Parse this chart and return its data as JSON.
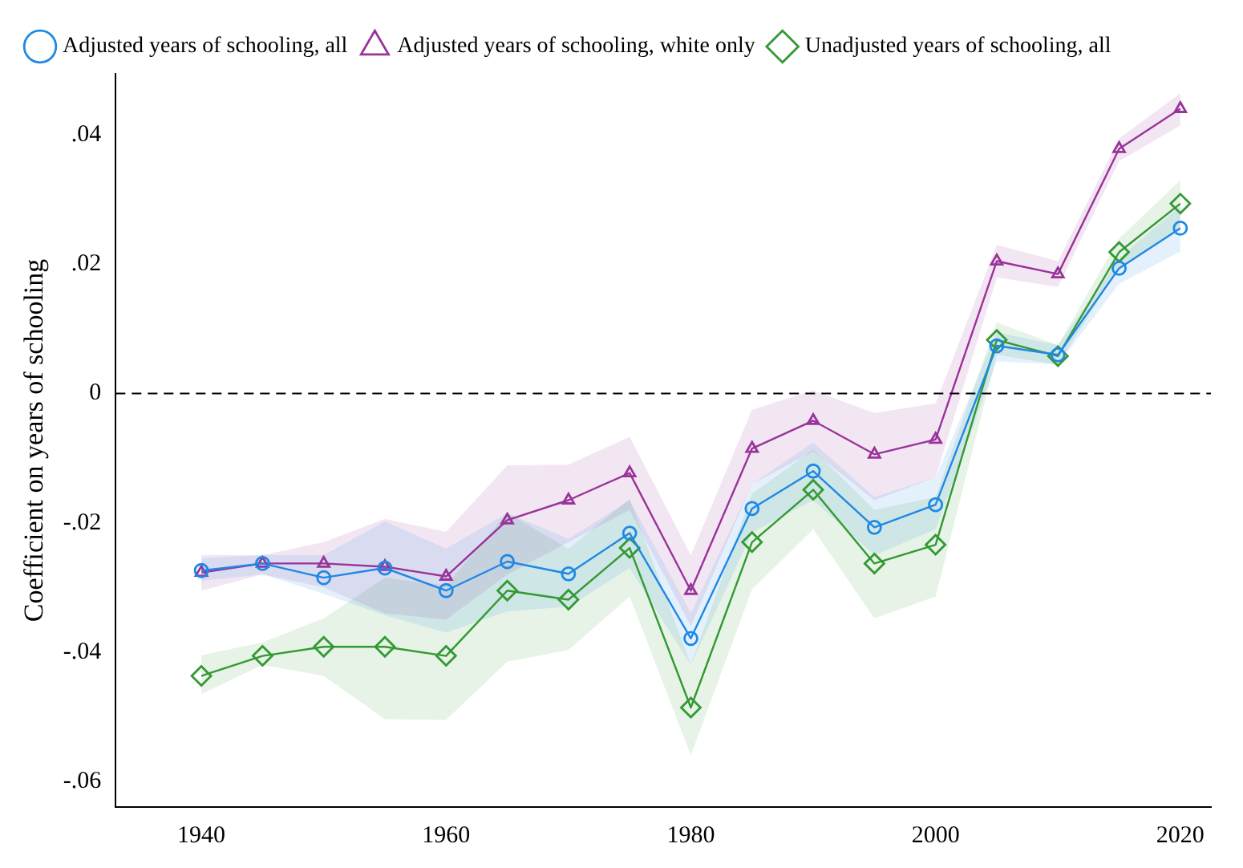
{
  "chart_data": {
    "type": "line",
    "ylabel": "Coefficient on years of schooling",
    "x": [
      1940,
      1945,
      1950,
      1955,
      1960,
      1965,
      1970,
      1975,
      1980,
      1985,
      1990,
      1995,
      2000,
      2005,
      2010,
      2015,
      2020
    ],
    "series": [
      {
        "name": "Adjusted years of schooling, all",
        "color": "#1f88e5",
        "marker": "circle",
        "values": [
          -0.0274,
          -0.0263,
          -0.0285,
          -0.027,
          -0.0305,
          -0.026,
          -0.0279,
          -0.0216,
          -0.0379,
          -0.0178,
          -0.012,
          -0.0207,
          -0.0172,
          0.0074,
          0.006,
          0.0194,
          0.0256
        ],
        "lower": [
          -0.029,
          -0.028,
          -0.031,
          -0.0343,
          -0.037,
          -0.0337,
          -0.033,
          -0.027,
          -0.042,
          -0.0215,
          -0.0165,
          -0.025,
          -0.021,
          0.005,
          0.0045,
          0.017,
          0.022
        ],
        "upper": [
          -0.0255,
          -0.025,
          -0.025,
          -0.0198,
          -0.024,
          -0.0185,
          -0.0225,
          -0.0165,
          -0.034,
          -0.014,
          -0.0076,
          -0.016,
          -0.013,
          0.0095,
          0.0075,
          0.021,
          0.029
        ]
      },
      {
        "name": "Adjusted years of schooling, white only",
        "color": "#993399",
        "marker": "triangle",
        "values": [
          -0.0277,
          -0.0263,
          -0.0263,
          -0.0268,
          -0.0283,
          -0.0196,
          -0.0165,
          -0.0123,
          -0.0305,
          -0.0085,
          -0.0042,
          -0.0094,
          -0.0071,
          0.0205,
          0.0185,
          0.0379,
          0.0441
        ],
        "lower": [
          -0.0305,
          -0.028,
          -0.03,
          -0.034,
          -0.035,
          -0.028,
          -0.023,
          -0.018,
          -0.036,
          -0.014,
          -0.009,
          -0.0165,
          -0.013,
          0.018,
          0.0165,
          0.036,
          0.0415
        ],
        "upper": [
          -0.025,
          -0.025,
          -0.023,
          -0.0194,
          -0.0214,
          -0.0111,
          -0.011,
          -0.0067,
          -0.025,
          -0.0025,
          0.0005,
          -0.003,
          -0.0015,
          0.023,
          0.0205,
          0.0395,
          0.0465
        ]
      },
      {
        "name": "Unadjusted years of schooling, all",
        "color": "#339933",
        "marker": "diamond",
        "values": [
          -0.0437,
          -0.0406,
          -0.0392,
          -0.0392,
          -0.0406,
          -0.0305,
          -0.0319,
          -0.0239,
          -0.0486,
          -0.023,
          -0.0149,
          -0.0263,
          -0.0234,
          0.0083,
          0.0058,
          0.0219,
          0.0294
        ],
        "lower": [
          -0.0465,
          -0.042,
          -0.0437,
          -0.0504,
          -0.0505,
          -0.0415,
          -0.0397,
          -0.0314,
          -0.056,
          -0.0303,
          -0.021,
          -0.0348,
          -0.0314,
          0.006,
          0.0045,
          0.0195,
          0.0255
        ],
        "upper": [
          -0.0405,
          -0.0385,
          -0.0348,
          -0.0285,
          -0.0297,
          -0.0185,
          -0.024,
          -0.0163,
          -0.042,
          -0.0155,
          -0.0087,
          -0.018,
          -0.016,
          0.011,
          0.0075,
          0.024,
          0.033
        ]
      }
    ],
    "xlim": [
      1933,
      2022.5
    ],
    "xticks": [
      1940,
      1960,
      1980,
      2000,
      2020
    ],
    "ylim": [
      -0.064,
      0.0495
    ],
    "yticks": [
      {
        "value": -0.06,
        "label": "-.06"
      },
      {
        "value": -0.04,
        "label": "-.04"
      },
      {
        "value": -0.02,
        "label": "-.02"
      },
      0,
      {
        "value": 0.02,
        "label": ".02"
      },
      {
        "value": 0.04,
        "label": ".04"
      }
    ],
    "ref_lines": [
      {
        "axis": "y",
        "value": 0,
        "color": "#000000",
        "line_style": "dashed"
      }
    ],
    "grid": false,
    "legend": "top left",
    "line_style": "solid"
  }
}
